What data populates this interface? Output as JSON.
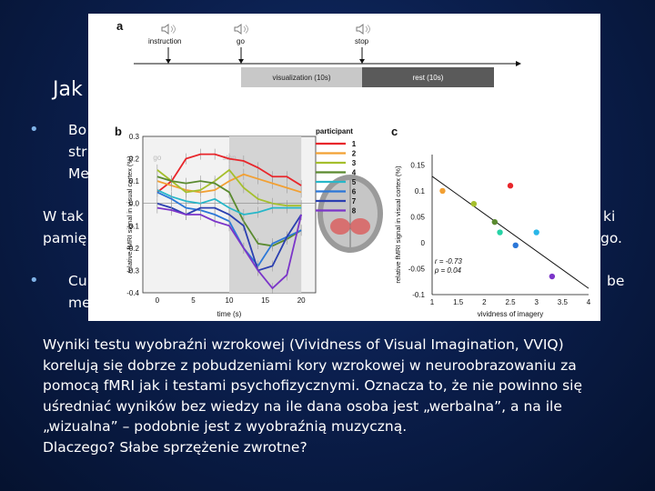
{
  "slide": {
    "title": "Jak",
    "bullet1_lines": [
      "Bo",
      "str",
      "Me"
    ],
    "line_w_left": "W tak",
    "line_w_right": "ki",
    "line_pam_left": "pamię",
    "line_pam_right": "go.",
    "bullet2_left": "Cu",
    "bullet2_right": "be",
    "bullet2_line2": "me",
    "paragraph": [
      "Wyniki testu wyobraźni wzrokowej (Vividness of Visual Imagination, VVIQ)",
      "korelują się dobrze z pobudzeniami kory wzrokowej w neuroobrazowaniu za",
      "pomocą fMRI jak i testami psychofizycznymi. Oznacza to, że nie powinno się",
      "uśredniać wyników bez wiedzy na ile dana osoba jest „werbalna”, a na ile",
      "„wizualna” – podobnie jest z wyobraźnią muzyczną.",
      "Dlaczego? Słabe sprzężenie zwrotne?"
    ],
    "bullet_color": "#7fb2e6"
  },
  "figure": {
    "panel_a": {
      "label": "a",
      "events": [
        "instruction",
        "go",
        "stop"
      ],
      "visualization_label": "visualization (10s)",
      "rest_label": "rest (10s)",
      "icon": "speaker-icon"
    },
    "panel_b": {
      "label": "b",
      "go_label": "go",
      "stop_label": "stop",
      "legend_title": "participant",
      "x_tick_labels": [
        "0",
        "5",
        "10",
        "15",
        "20"
      ],
      "y_tick_labels": [
        "0.3",
        "0.2",
        "0.1",
        "0.0",
        "-0.1",
        "-0.2",
        "-0.3",
        "-0.4"
      ],
      "xlabel": "time (s)",
      "ylabel": "relative fMRI signal in visual cortex (%)"
    },
    "panel_c": {
      "label": "c",
      "x_tick_labels": [
        "1",
        "1.5",
        "2",
        "2.5",
        "3",
        "3.5",
        "4"
      ],
      "y_tick_labels": [
        "0.15",
        "0.1",
        "0.05",
        "0",
        "-0.05",
        "-0.1"
      ],
      "xlabel": "vividness of imagery",
      "ylabel": "relative fMRI signal in visual cortex (%)",
      "r_text": "r = -0.73",
      "p_text": "p = 0.04"
    }
  },
  "chart_data": [
    {
      "type": "line",
      "x": [
        0,
        2,
        4,
        6,
        8,
        10,
        12,
        14,
        16,
        18,
        20
      ],
      "ylabel": "relative fMRI signal in visual cortex (%)",
      "xlabel": "time (s)",
      "xlim": [
        -2,
        22
      ],
      "ylim": [
        -0.4,
        0.3
      ],
      "series": [
        {
          "name": "1",
          "color": "#e8262b",
          "values": [
            0.05,
            0.1,
            0.2,
            0.22,
            0.22,
            0.2,
            0.19,
            0.16,
            0.12,
            0.12,
            0.08
          ]
        },
        {
          "name": "2",
          "color": "#f2a033",
          "values": [
            0.1,
            0.08,
            0.06,
            0.05,
            0.06,
            0.1,
            0.13,
            0.11,
            0.09,
            0.07,
            0.05
          ]
        },
        {
          "name": "3",
          "color": "#a5bf2d",
          "values": [
            0.15,
            0.1,
            0.05,
            0.06,
            0.1,
            0.15,
            0.07,
            0.02,
            0.0,
            -0.01,
            -0.01
          ]
        },
        {
          "name": "4",
          "color": "#5a8a2f",
          "values": [
            0.12,
            0.1,
            0.09,
            0.1,
            0.09,
            0.05,
            -0.08,
            -0.18,
            -0.19,
            -0.16,
            -0.12
          ]
        },
        {
          "name": "5",
          "color": "#27b7c9",
          "values": [
            0.06,
            0.03,
            0.01,
            0.0,
            0.02,
            -0.02,
            -0.05,
            -0.04,
            -0.02,
            -0.02,
            -0.02
          ]
        },
        {
          "name": "6",
          "color": "#2b77d8",
          "values": [
            0.05,
            0.02,
            -0.02,
            -0.03,
            -0.05,
            -0.08,
            -0.2,
            -0.28,
            -0.18,
            -0.15,
            -0.12
          ]
        },
        {
          "name": "7",
          "color": "#2b3fb0",
          "values": [
            0.0,
            -0.02,
            -0.05,
            -0.02,
            -0.02,
            -0.05,
            -0.1,
            -0.3,
            -0.28,
            -0.15,
            -0.05
          ]
        },
        {
          "name": "8",
          "color": "#7b35c9",
          "values": [
            -0.02,
            -0.03,
            -0.05,
            -0.05,
            -0.08,
            -0.1,
            -0.2,
            -0.3,
            -0.38,
            -0.32,
            -0.05
          ]
        }
      ]
    },
    {
      "type": "scatter",
      "xlabel": "vividness of imagery",
      "ylabel": "relative fMRI signal in visual cortex (%)",
      "xlim": [
        1,
        4
      ],
      "ylim": [
        -0.1,
        0.17
      ],
      "points": [
        {
          "x": 1.2,
          "y": 0.1,
          "color": "#f2a033"
        },
        {
          "x": 1.8,
          "y": 0.075,
          "color": "#a5bf2d"
        },
        {
          "x": 2.2,
          "y": 0.04,
          "color": "#5a8a2f"
        },
        {
          "x": 2.3,
          "y": 0.02,
          "color": "#27d3a6"
        },
        {
          "x": 2.5,
          "y": 0.11,
          "color": "#e8262b"
        },
        {
          "x": 2.6,
          "y": -0.005,
          "color": "#2b77d8"
        },
        {
          "x": 3.0,
          "y": 0.02,
          "color": "#29b6e8"
        },
        {
          "x": 3.3,
          "y": -0.065,
          "color": "#7b35c9"
        }
      ],
      "fit_line": {
        "x": [
          1.0,
          4.0
        ],
        "y": [
          0.128,
          -0.088
        ]
      }
    }
  ]
}
